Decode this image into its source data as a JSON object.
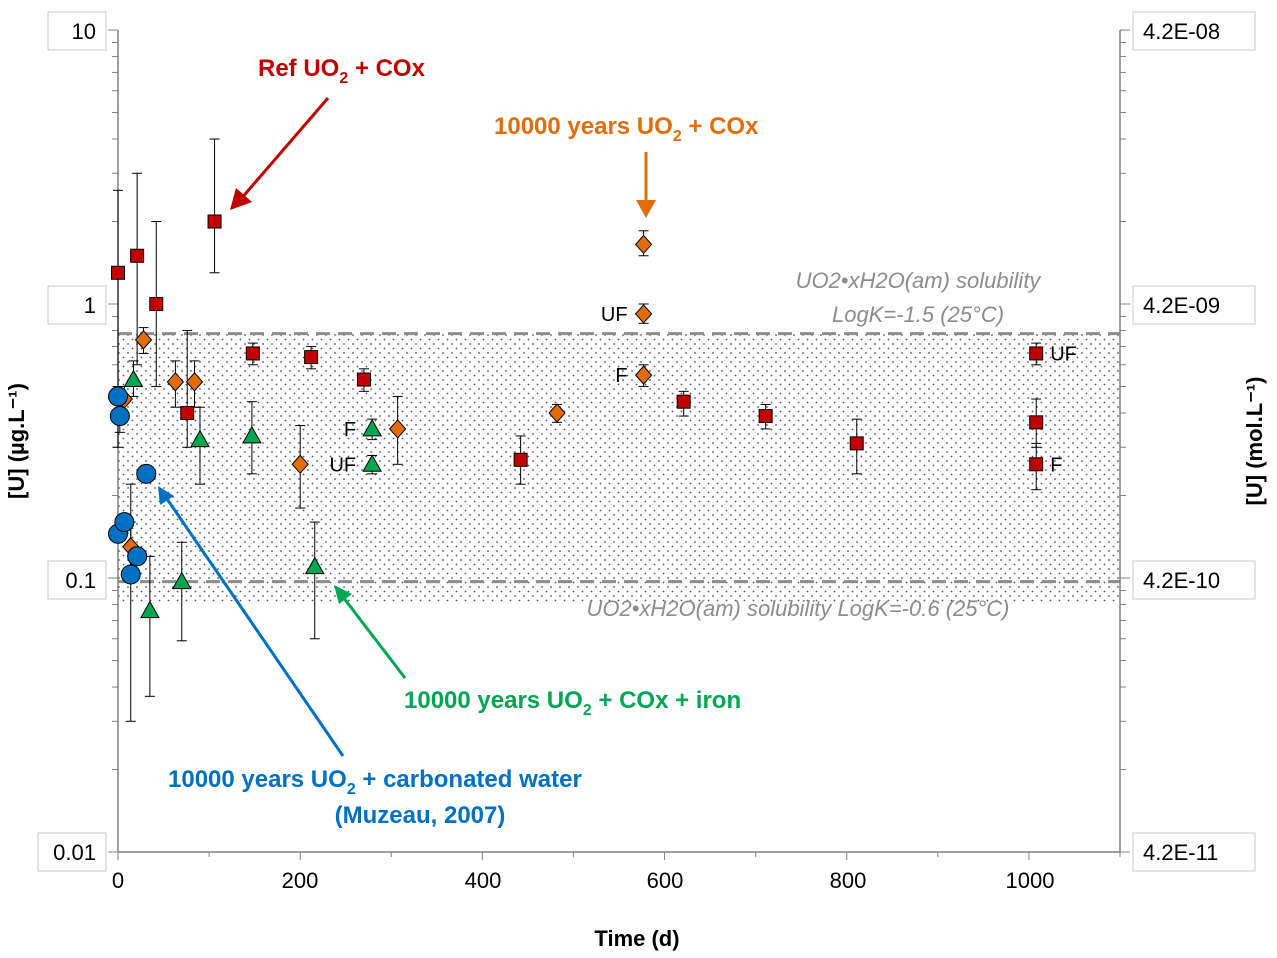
{
  "chart_data": {
    "type": "scatter",
    "xlabel": "Time (d)",
    "ylabel": "[U] (µg.L⁻¹)",
    "y2label": "[U] (mol.L⁻¹)",
    "xlim": [
      0,
      1100
    ],
    "ylim": [
      0.01,
      10
    ],
    "yscale": "log",
    "x_ticks": [
      "0",
      "200",
      "400",
      "600",
      "800",
      "1000"
    ],
    "y_ticks": [
      "0.01",
      "0.1",
      "1",
      "10"
    ],
    "y2_ticks": [
      "4.2E-11",
      "4.2E-10",
      "4.2E-09",
      "4.2E-08"
    ],
    "grid": false,
    "series": [
      {
        "name": "Ref UO2 + COx",
        "color": "#c00000",
        "marker": "square",
        "points": [
          {
            "x": 0,
            "y": 1.3,
            "lo": 0.3,
            "hi": 2.6
          },
          {
            "x": 21,
            "y": 1.5,
            "lo": 0.6,
            "hi": 3.0
          },
          {
            "x": 42,
            "y": 1.0,
            "lo": 0.5,
            "hi": 2.0
          },
          {
            "x": 76,
            "y": 0.4,
            "lo": 0.3,
            "hi": 0.8
          },
          {
            "x": 106,
            "y": 2.0,
            "lo": 1.3,
            "hi": 4.0
          },
          {
            "x": 148,
            "y": 0.66,
            "lo": 0.6,
            "hi": 0.72
          },
          {
            "x": 212,
            "y": 0.64,
            "lo": 0.58,
            "hi": 0.7
          },
          {
            "x": 270,
            "y": 0.53,
            "lo": 0.48,
            "hi": 0.58
          },
          {
            "x": 442,
            "y": 0.27,
            "lo": 0.22,
            "hi": 0.33
          },
          {
            "x": 621,
            "y": 0.44,
            "lo": 0.39,
            "hi": 0.48
          },
          {
            "x": 711,
            "y": 0.39,
            "lo": 0.35,
            "hi": 0.43
          },
          {
            "x": 811,
            "y": 0.31,
            "lo": 0.24,
            "hi": 0.38
          },
          {
            "x": 1008,
            "y": 0.66,
            "lo": 0.6,
            "hi": 0.72
          },
          {
            "x": 1008,
            "y": 0.37,
            "lo": 0.3,
            "hi": 0.45
          },
          {
            "x": 1008,
            "y": 0.26,
            "lo": 0.21,
            "hi": 0.31
          }
        ]
      },
      {
        "name": "10000 years UO2 + COx",
        "color": "#e36c0a",
        "marker": "diamond",
        "points": [
          {
            "x": 7,
            "y": 0.45,
            "lo": 0.4,
            "hi": 0.5
          },
          {
            "x": 14,
            "y": 0.13,
            "lo": 0.1,
            "hi": 0.16
          },
          {
            "x": 28,
            "y": 0.74,
            "lo": 0.66,
            "hi": 0.82
          },
          {
            "x": 63,
            "y": 0.52,
            "lo": 0.42,
            "hi": 0.62
          },
          {
            "x": 84,
            "y": 0.52,
            "lo": 0.42,
            "hi": 0.62
          },
          {
            "x": 200,
            "y": 0.26,
            "lo": 0.18,
            "hi": 0.36
          },
          {
            "x": 307,
            "y": 0.35,
            "lo": 0.26,
            "hi": 0.46
          },
          {
            "x": 482,
            "y": 0.4,
            "lo": 0.37,
            "hi": 0.43
          },
          {
            "x": 577,
            "y": 1.65,
            "lo": 1.5,
            "hi": 1.85
          },
          {
            "x": 577,
            "y": 0.92,
            "lo": 0.85,
            "hi": 1.0
          },
          {
            "x": 577,
            "y": 0.55,
            "lo": 0.5,
            "hi": 0.6
          }
        ]
      },
      {
        "name": "10000 years UO2 + COx + iron",
        "color": "#00a651",
        "marker": "triangle",
        "points": [
          {
            "x": 17,
            "y": 0.53,
            "lo": 0.46,
            "hi": 0.62
          },
          {
            "x": 35,
            "y": 0.076,
            "lo": 0.037,
            "hi": 0.12
          },
          {
            "x": 70,
            "y": 0.097,
            "lo": 0.059,
            "hi": 0.135
          },
          {
            "x": 90,
            "y": 0.32,
            "lo": 0.22,
            "hi": 0.42
          },
          {
            "x": 147,
            "y": 0.33,
            "lo": 0.24,
            "hi": 0.44
          },
          {
            "x": 216,
            "y": 0.11,
            "lo": 0.06,
            "hi": 0.16
          },
          {
            "x": 279,
            "y": 0.35,
            "lo": 0.32,
            "hi": 0.38
          },
          {
            "x": 279,
            "y": 0.26,
            "lo": 0.24,
            "hi": 0.28
          }
        ]
      },
      {
        "name": "10000 years UO2 + carbonated water (Muzeau, 2007)",
        "color": "#0070c0",
        "marker": "circle",
        "points": [
          {
            "x": 0,
            "y": 0.46,
            "lo": 0.4,
            "hi": 0.5
          },
          {
            "x": 2,
            "y": 0.39,
            "lo": 0.34,
            "hi": 0.44
          },
          {
            "x": 0,
            "y": 0.145
          },
          {
            "x": 7,
            "y": 0.16
          },
          {
            "x": 14,
            "y": 0.103,
            "lo": 0.03,
            "hi": 0.22
          },
          {
            "x": 21,
            "y": 0.12
          },
          {
            "x": 31,
            "y": 0.24
          }
        ]
      }
    ],
    "hlines": [
      {
        "y": 0.78,
        "label1": "UO2•xH2O(am) solubility",
        "label2": "LogK=-1.5 (25°C)"
      },
      {
        "y": 0.097,
        "label1": "UO2•xH2O(am) solubility LogK=-0.6 (25°C)"
      }
    ],
    "point_labels": [
      {
        "text": "UF",
        "x": 577,
        "y": 0.92,
        "side": "left"
      },
      {
        "text": "F",
        "x": 577,
        "y": 0.55,
        "side": "left"
      },
      {
        "text": "F",
        "x": 279,
        "y": 0.35,
        "side": "left"
      },
      {
        "text": "UF",
        "x": 279,
        "y": 0.26,
        "side": "left"
      },
      {
        "text": "UF",
        "x": 1008,
        "y": 0.66,
        "side": "right"
      },
      {
        "text": "F",
        "x": 1008,
        "y": 0.26,
        "side": "right"
      }
    ]
  },
  "annotations": {
    "ref": {
      "prefix": "Ref UO",
      "sub": "2",
      "suffix": " + COx",
      "color": "#c00000"
    },
    "cox": {
      "prefix": "10000 years UO",
      "sub": "2",
      "suffix": " + COx",
      "color": "#e36c0a"
    },
    "iron": {
      "prefix": "10000 years UO",
      "sub": "2",
      "suffix": " + COx + iron",
      "color": "#00a651"
    },
    "carb": {
      "prefix": "10000 years UO",
      "sub": "2",
      "suffix": " + carbonated water",
      "line2": "(Muzeau, 2007)",
      "color": "#0070c0"
    }
  }
}
